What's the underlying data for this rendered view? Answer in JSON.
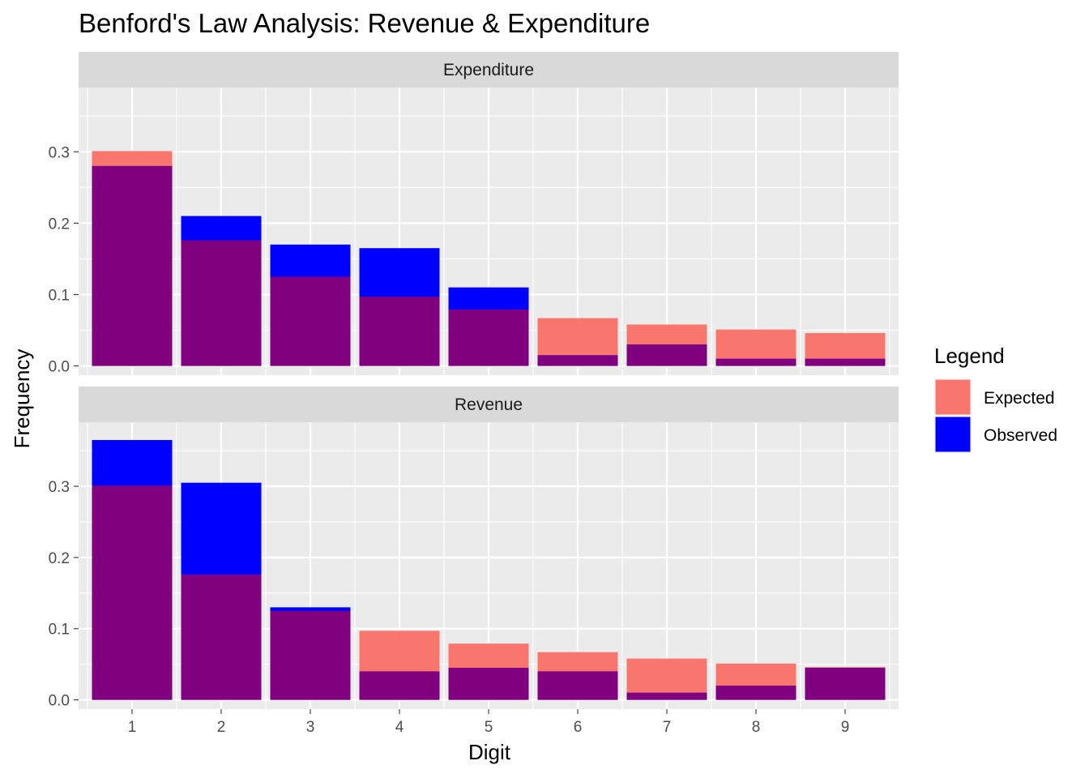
{
  "chart_data": {
    "type": "bar",
    "title": "Benford's Law Analysis: Revenue & Expenditure",
    "xlabel": "Digit",
    "ylabel": "Frequency",
    "categories": [
      "1",
      "2",
      "3",
      "4",
      "5",
      "6",
      "7",
      "8",
      "9"
    ],
    "yticks": [
      "0.0",
      "0.1",
      "0.2",
      "0.3"
    ],
    "ylim": [
      -0.013,
      0.39
    ],
    "grid": true,
    "legend": {
      "title": "Legend",
      "position": "right",
      "entries": [
        "Expected",
        "Observed"
      ]
    },
    "colors": {
      "Expected": "#F8766D",
      "Observed": "#0000FF",
      "overlap": "#800080",
      "panel_bg": "#EBEBEB",
      "strip_bg": "#D9D9D9",
      "grid": "#FFFFFF"
    },
    "facets": [
      {
        "name": "Expenditure",
        "series": [
          {
            "name": "Expected",
            "values": [
              0.301,
              0.176,
              0.125,
              0.097,
              0.079,
              0.067,
              0.058,
              0.051,
              0.046
            ]
          },
          {
            "name": "Observed",
            "values": [
              0.28,
              0.21,
              0.17,
              0.165,
              0.11,
              0.015,
              0.03,
              0.01,
              0.01
            ]
          }
        ]
      },
      {
        "name": "Revenue",
        "series": [
          {
            "name": "Expected",
            "values": [
              0.301,
              0.176,
              0.125,
              0.097,
              0.079,
              0.067,
              0.058,
              0.051,
              0.046
            ]
          },
          {
            "name": "Observed",
            "values": [
              0.365,
              0.305,
              0.13,
              0.04,
              0.045,
              0.04,
              0.01,
              0.02,
              0.045
            ]
          }
        ]
      }
    ]
  }
}
